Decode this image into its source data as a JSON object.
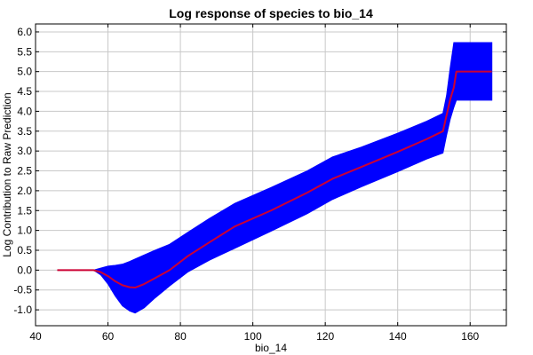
{
  "chart_data": {
    "type": "line",
    "title": "Log response of species to bio_14",
    "xlabel": "bio_14",
    "ylabel": "Log Contribution to Raw Prediction",
    "xlim": [
      40,
      170
    ],
    "ylim": [
      -1.4,
      6.2
    ],
    "x_ticks": [
      40,
      60,
      80,
      100,
      120,
      140,
      160
    ],
    "x_tick_labels": [
      "40",
      "60",
      "80",
      "100",
      "120",
      "140",
      "160"
    ],
    "y_ticks": [
      -1.0,
      -0.5,
      0.0,
      0.5,
      1.0,
      1.5,
      2.0,
      2.5,
      3.0,
      3.5,
      4.0,
      4.5,
      5.0,
      5.5,
      6.0
    ],
    "y_tick_labels": [
      "-1.0",
      "-0.5",
      "0.0",
      "0.5",
      "1.0",
      "1.5",
      "2.0",
      "2.5",
      "3.0",
      "3.5",
      "4.0",
      "4.5",
      "5.0",
      "5.5",
      "6.0"
    ],
    "grid": true,
    "line_color": "#cc0033",
    "band_color": "#0000ff",
    "series": [
      {
        "x": [
          46,
          56,
          58,
          60,
          62,
          64,
          66,
          67.5,
          70,
          73,
          77,
          82,
          88,
          95,
          105,
          115,
          122,
          130,
          140,
          148,
          152.5,
          153.5,
          154.5,
          155.5,
          156.2,
          158,
          160,
          163,
          166
        ],
        "y": [
          0.0,
          0.0,
          -0.05,
          -0.15,
          -0.28,
          -0.38,
          -0.43,
          -0.44,
          -0.35,
          -0.2,
          0.0,
          0.35,
          0.7,
          1.1,
          1.5,
          1.95,
          2.3,
          2.6,
          2.98,
          3.3,
          3.5,
          3.9,
          4.3,
          4.6,
          5.0,
          5.0,
          5.0,
          5.0,
          5.0
        ]
      },
      {
        "x": [
          46,
          56,
          58,
          60,
          62,
          64,
          66,
          67.5,
          70,
          73,
          77,
          82,
          88,
          95,
          105,
          115,
          122,
          130,
          140,
          148,
          152.5,
          153.5,
          154.5,
          155.5,
          156.2,
          158,
          160,
          163,
          166
        ],
        "y_lower": [
          0.0,
          0.0,
          -0.12,
          -0.35,
          -0.65,
          -0.9,
          -1.03,
          -1.08,
          -0.95,
          -0.7,
          -0.4,
          -0.05,
          0.25,
          0.55,
          0.98,
          1.42,
          1.78,
          2.1,
          2.48,
          2.8,
          2.95,
          3.4,
          3.8,
          4.1,
          4.28,
          4.28,
          4.28,
          4.28,
          4.28
        ],
        "y_upper": [
          0.0,
          0.0,
          0.05,
          0.1,
          0.12,
          0.15,
          0.22,
          0.28,
          0.38,
          0.5,
          0.65,
          0.95,
          1.3,
          1.68,
          2.08,
          2.5,
          2.85,
          3.1,
          3.45,
          3.75,
          3.95,
          4.4,
          5.1,
          5.73,
          5.73,
          5.73,
          5.73,
          5.73,
          5.73
        ]
      }
    ]
  }
}
